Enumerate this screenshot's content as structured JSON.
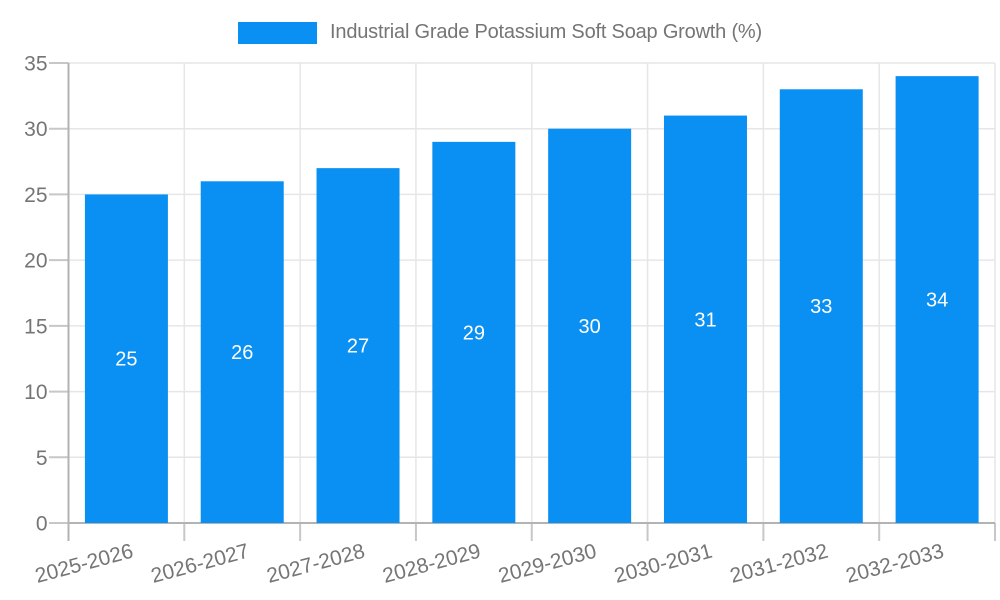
{
  "chart_data": {
    "type": "bar",
    "title": "Industrial Grade Potassium Soft Soap Growth (%)",
    "categories": [
      "2025-2026",
      "2026-2027",
      "2027-2028",
      "2028-2029",
      "2029-2030",
      "2030-2031",
      "2031-2032",
      "2032-2033"
    ],
    "values": [
      25,
      26,
      27,
      29,
      30,
      31,
      33,
      34
    ],
    "xlabel": "",
    "ylabel": "",
    "ylim": [
      0,
      35
    ],
    "yticks": [
      0,
      5,
      10,
      15,
      20,
      25,
      30,
      35
    ],
    "grid": true,
    "legend_position": "top-center",
    "bar_color": "#0a8ff2",
    "value_label_color": "#ffffff",
    "axis_text_color": "#757575",
    "grid_color": "#e6e6e6",
    "axis_line_color": "#b3b3b3",
    "tick_color": "#c7c7c7",
    "background_color": "#ffffff",
    "x_label_rotation_deg": -15
  }
}
